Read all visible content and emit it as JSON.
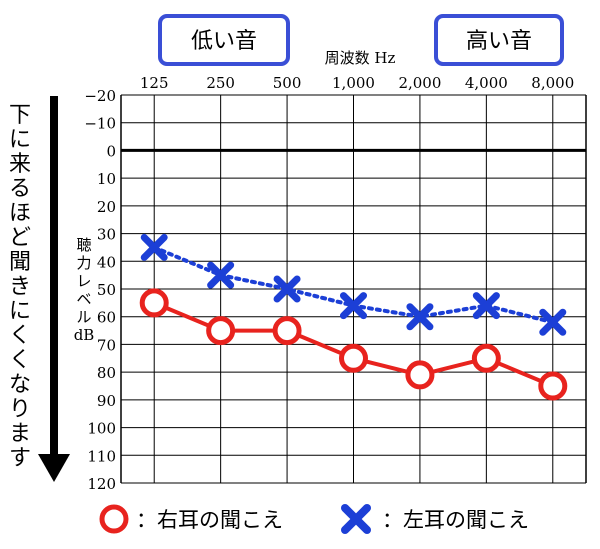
{
  "chart_data": {
    "type": "line",
    "x_label": "周波数 Hz",
    "y_label": "聴力レベル dB",
    "categories": [
      "125",
      "250",
      "500",
      "1,000",
      "2,000",
      "4,000",
      "8,000"
    ],
    "y_ticks": [
      "−20",
      "−10",
      "0",
      "10",
      "20",
      "30",
      "40",
      "50",
      "60",
      "70",
      "80",
      "90",
      "100",
      "110",
      "120"
    ],
    "y_tick_values": [
      -20,
      -10,
      0,
      10,
      20,
      30,
      40,
      50,
      60,
      70,
      80,
      90,
      100,
      110,
      120
    ],
    "ylim": [
      -20,
      120
    ],
    "y_inverted": true,
    "grid": true,
    "reference_line_value": 0,
    "series": [
      {
        "name": "：右耳の聞こえ",
        "marker": "circle",
        "line": "solid",
        "color": "#e8231e",
        "values": [
          55,
          65,
          65,
          75,
          81,
          75,
          85
        ]
      },
      {
        "name": "：左耳の聞こえ",
        "marker": "cross",
        "line": "dotted",
        "color": "#1c3fd6",
        "values": [
          35,
          45,
          50,
          56,
          60,
          56,
          62
        ]
      }
    ],
    "annotations": {
      "low_label": "低い音",
      "high_label": "高い音",
      "left_arrow_text": "下に来るほど聞きにくくなります"
    }
  },
  "colors": {
    "box_border": "#3a4fd6",
    "grid": "#000000",
    "arrow": "#000000"
  }
}
